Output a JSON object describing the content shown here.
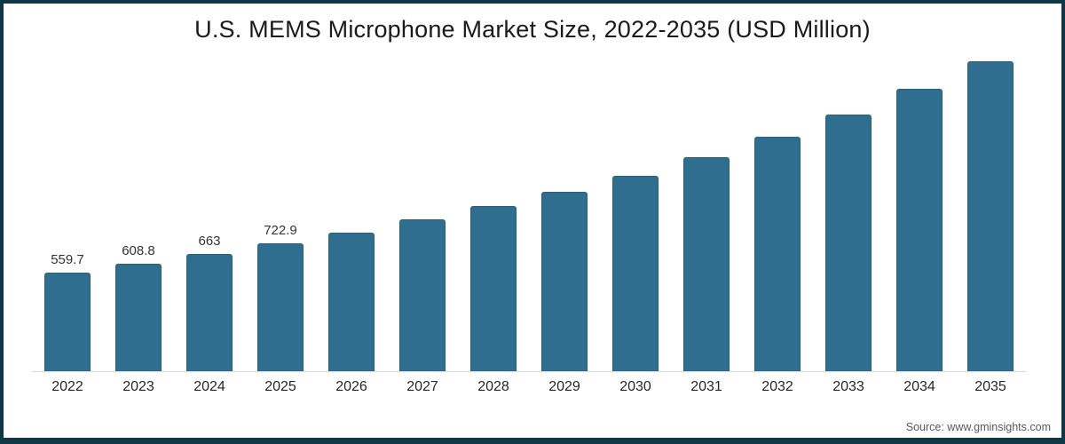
{
  "title": "U.S. MEMS Microphone Market Size, 2022-2035 (USD Million)",
  "source": "Source: www.gminsights.com",
  "colors": {
    "bar": "#2F6E8E",
    "bar_border": "#28607E",
    "frame_border": "#0F3745",
    "axis_line": "#D9D9D9",
    "title_text": "#1A1A1A",
    "axis_text": "#262626",
    "value_label_text": "#333333",
    "source_text": "#595959",
    "background": "#FFFFFF"
  },
  "chart_data": {
    "type": "bar",
    "title": "U.S. MEMS Microphone Market Size, 2022-2035 (USD Million)",
    "categories": [
      "2022",
      "2023",
      "2024",
      "2025",
      "2026",
      "2027",
      "2028",
      "2029",
      "2030",
      "2031",
      "2032",
      "2033",
      "2034",
      "2035"
    ],
    "values": [
      559.7,
      608.8,
      663,
      722.9,
      785,
      860,
      935,
      1015,
      1105,
      1210,
      1325,
      1450,
      1595,
      1750
    ],
    "data_labels": [
      "559.7",
      "608.8",
      "663",
      "722.9",
      "",
      "",
      "",
      "",
      "",
      "",
      "",
      "",
      "",
      ""
    ],
    "xlabel": "",
    "ylabel": "",
    "ylim": [
      0,
      1800
    ],
    "grid": false,
    "legend": "none",
    "y_axis_visible": false,
    "values_note": "2026-2035 values estimated from bar heights; only 2022-2025 carry printed data labels"
  }
}
